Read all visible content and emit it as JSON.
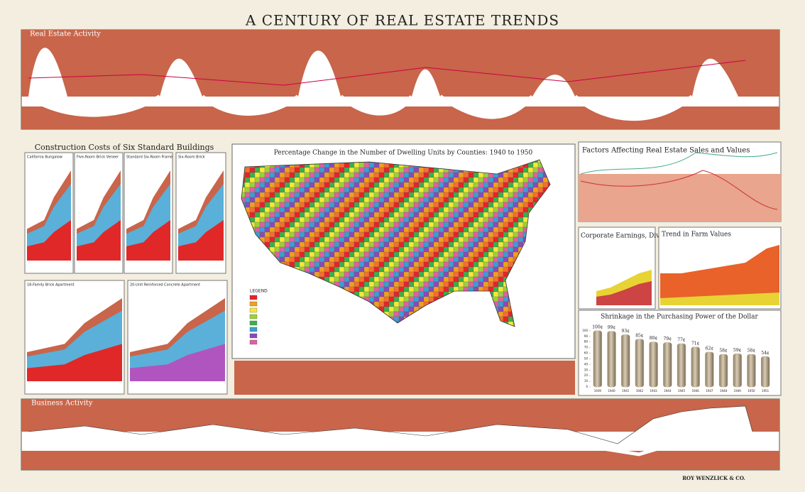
{
  "title": "A CENTURY OF REAL ESTATE TRENDS",
  "sections": {
    "real_estate": "Real Estate Activity",
    "construction": "Construction Costs of Six Standard Buildings",
    "buildings": [
      "California Bungalow",
      "Five-Room Brick Veneer",
      "Standard Six-Room Frame",
      "Six-Room Brick",
      "18-Family Brick Apartment",
      "20-Unit Reinforced Concrete Apartment"
    ],
    "map": "Percentage Change in the Number of Dwelling Units by Counties: 1940 to 1950",
    "map_legend": "LEGEND",
    "factors": "Factors Affecting Real Estate Sales and Values",
    "corporate": "Corporate Earnings, Dividends and Taxes",
    "farm": "Trend in Farm Values",
    "business": "Business Activity",
    "publisher": "ROY WENZLICK & CO."
  },
  "chart_data": {
    "type": "bar",
    "title": "Shrinkage in the Purchasing Power of the Dollar",
    "categories": [
      "1939",
      "1940",
      "1941",
      "1942",
      "1943",
      "1944",
      "1945",
      "1946",
      "1947",
      "1948",
      "1949",
      "1950",
      "1951"
    ],
    "values": [
      100,
      99,
      93,
      85,
      80,
      79,
      77,
      71,
      62,
      58,
      59,
      58,
      54
    ],
    "value_labels": [
      "100¢",
      "99¢",
      "93¢",
      "85¢",
      "80¢",
      "79¢",
      "77¢",
      "71¢",
      "62¢",
      "58¢",
      "59¢",
      "58¢",
      "54¢"
    ],
    "color": "#b5a489",
    "ylim": [
      0,
      110
    ],
    "yticks": [
      0,
      10,
      20,
      30,
      40,
      50,
      60,
      70,
      80,
      90,
      100
    ]
  }
}
